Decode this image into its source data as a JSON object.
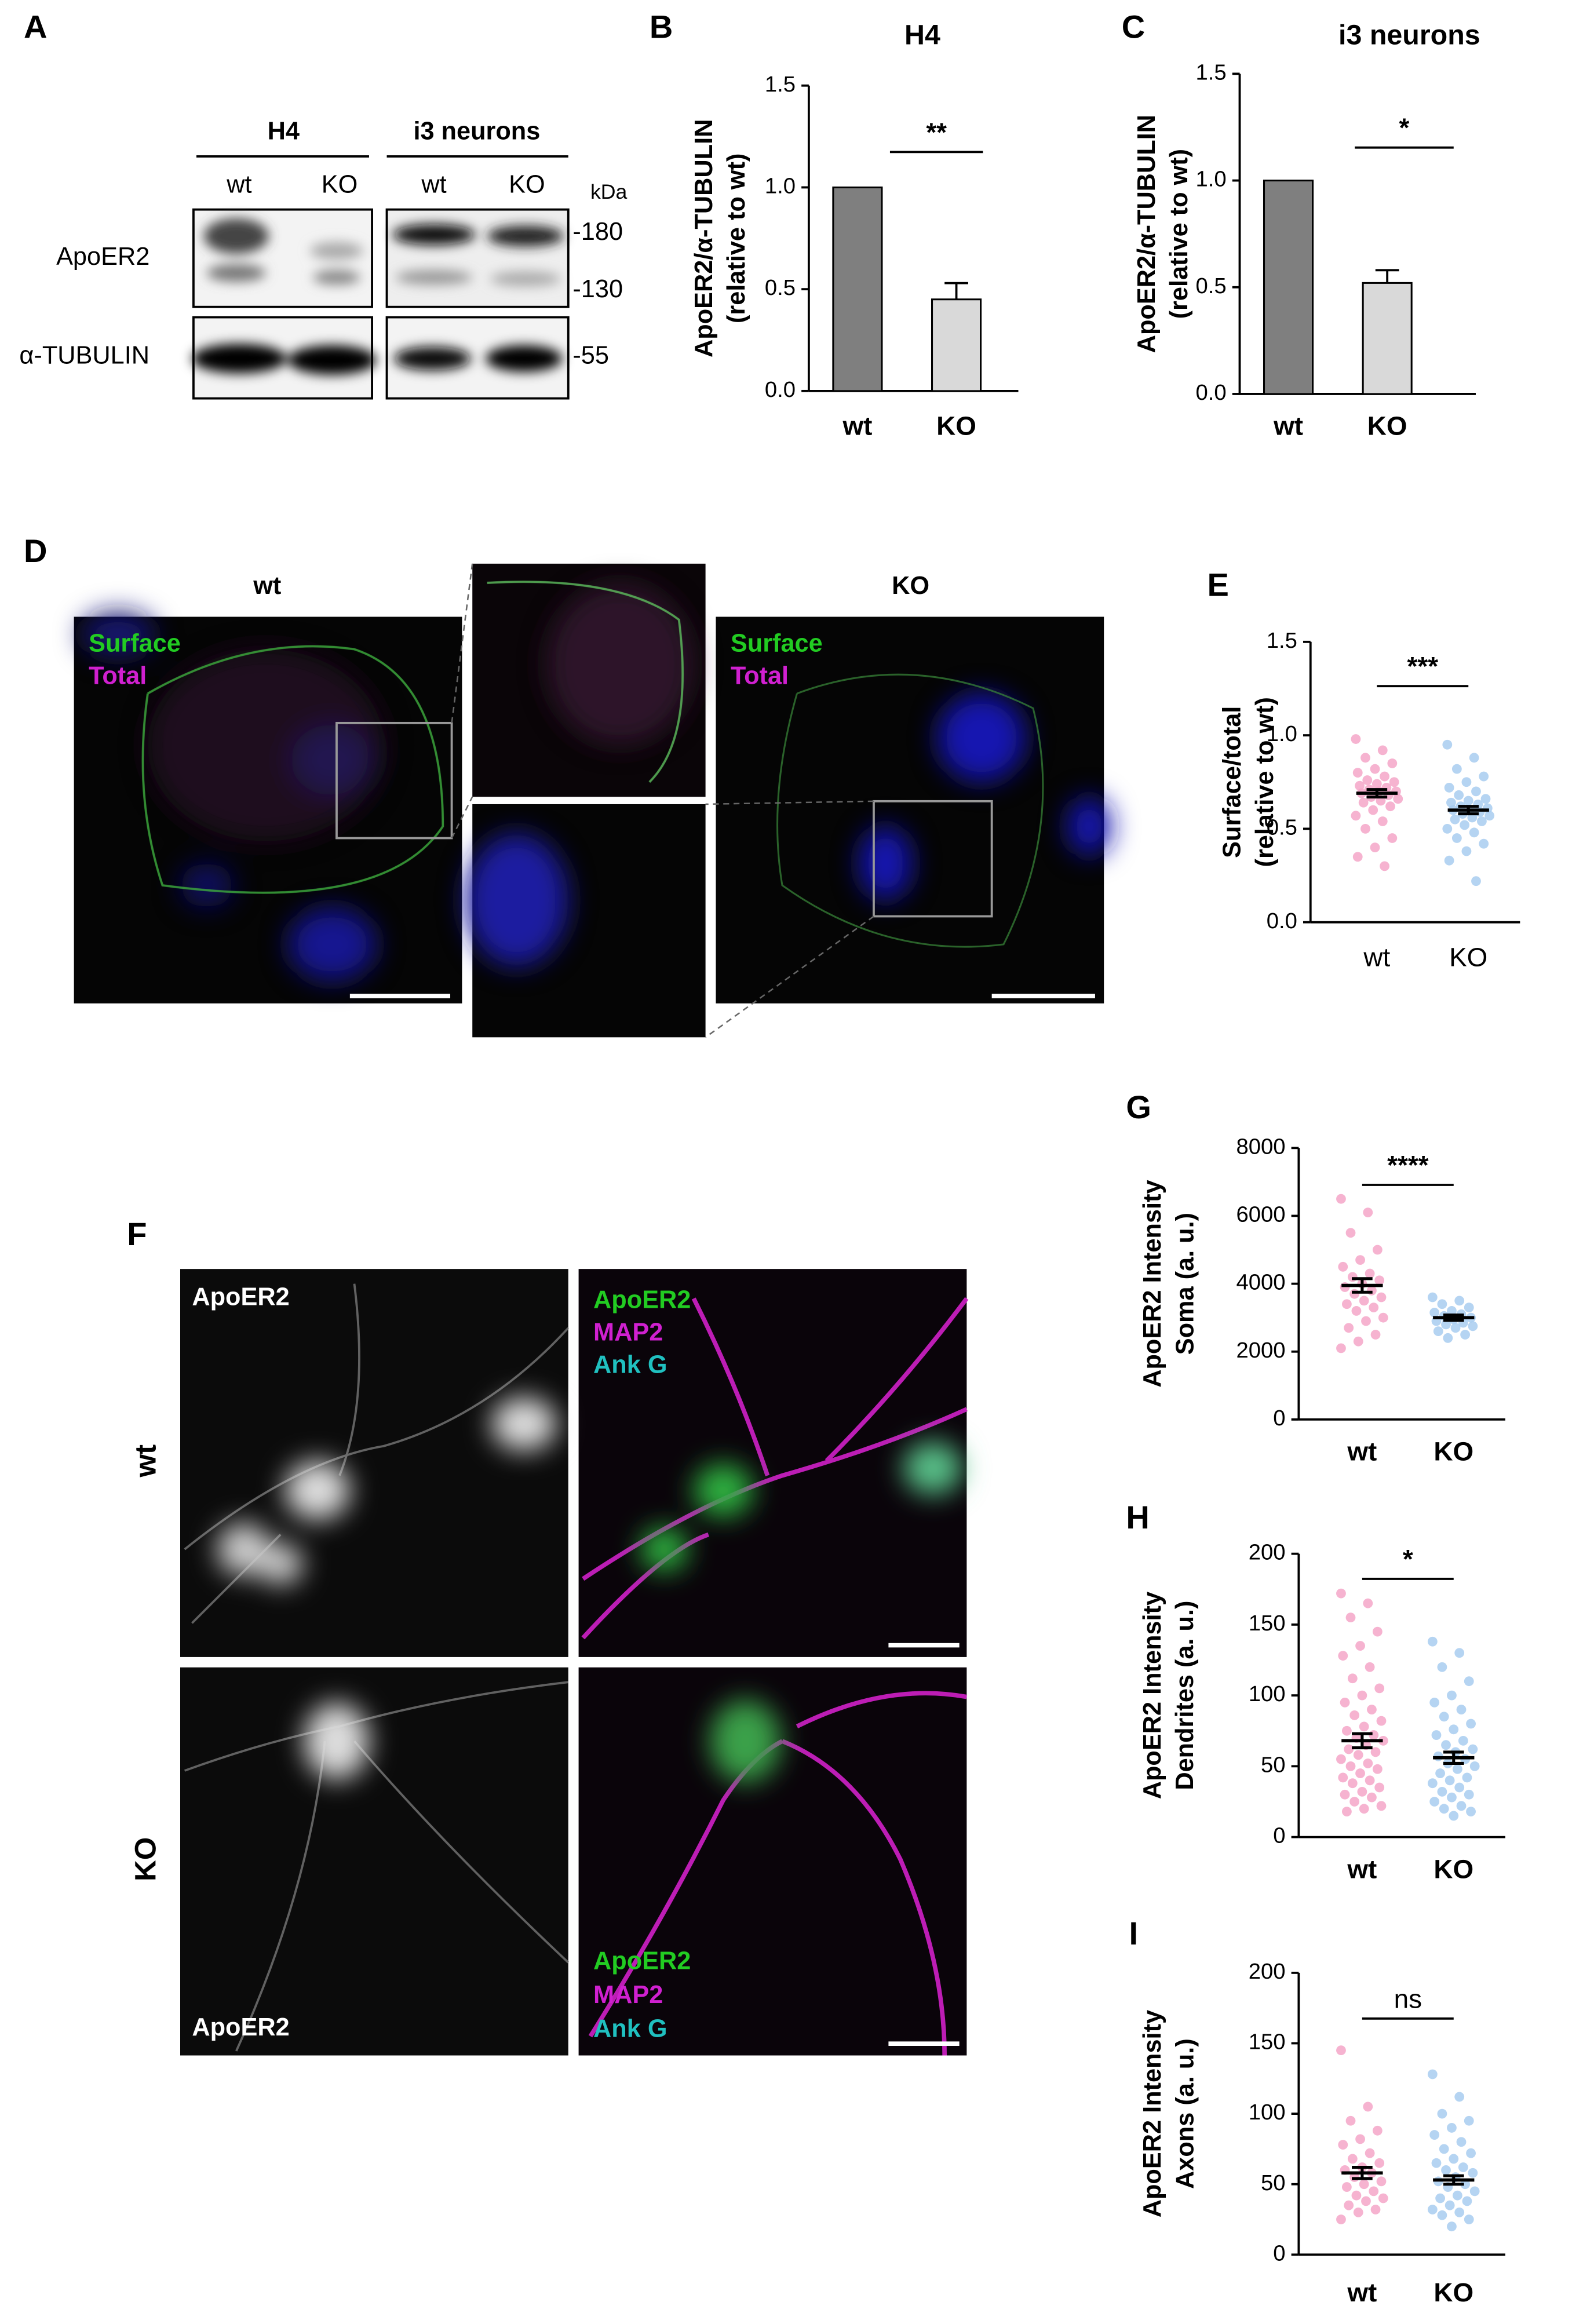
{
  "panel_labels": [
    "A",
    "B",
    "C",
    "D",
    "E",
    "F",
    "G",
    "H",
    "I"
  ],
  "blot": {
    "groups": [
      "H4",
      "i3 neurons"
    ],
    "lanes": [
      "wt",
      "KO",
      "wt",
      "KO"
    ],
    "unit": "kDa",
    "rows": [
      "ApoER2",
      "α-TUBULIN"
    ],
    "markers": [
      "-180",
      "-130",
      "-55"
    ]
  },
  "microscopy_d": {
    "titles": [
      "wt",
      "KO"
    ],
    "channels": [
      "Surface",
      "Total"
    ]
  },
  "microscopy_f": {
    "rows": [
      "wt",
      "KO"
    ],
    "gray_label": "ApoER2",
    "channels": [
      "ApoER2",
      "MAP2",
      "Ank G"
    ]
  },
  "chart_data": [
    {
      "type": "bar",
      "title": "H4",
      "ylabel": [
        "ApoER2/α-TUBULIN",
        "(relative to wt)"
      ],
      "categories": [
        "wt",
        "KO"
      ],
      "values": [
        1.0,
        0.45
      ],
      "errors": [
        null,
        0.08
      ],
      "colors": [
        "#7f7f7f",
        "#d9d9d9"
      ],
      "ylim": [
        0,
        1.5
      ],
      "yticks": [
        {
          "value": 0,
          "label": "0.0"
        },
        {
          "value": 0.5,
          "label": "0.5"
        },
        {
          "value": 1,
          "label": "1.0"
        },
        {
          "value": 1.5,
          "label": "1.5"
        }
      ],
      "significance": "**"
    },
    {
      "type": "bar",
      "title": "i3 neurons",
      "ylabel": [
        "ApoER2/α-TUBULIN",
        "(relative to wt)"
      ],
      "categories": [
        "wt",
        "KO"
      ],
      "values": [
        1.0,
        0.52
      ],
      "errors": [
        null,
        0.06
      ],
      "colors": [
        "#7f7f7f",
        "#d9d9d9"
      ],
      "ylim": [
        0,
        1.5
      ],
      "yticks": [
        {
          "value": 0,
          "label": "0.0"
        },
        {
          "value": 0.5,
          "label": "0.5"
        },
        {
          "value": 1,
          "label": "1.0"
        },
        {
          "value": 1.5,
          "label": "1.5"
        }
      ],
      "significance": "*"
    },
    {
      "type": "strip",
      "ylabel": [
        "Surface/total",
        "(relative to wt)"
      ],
      "categories": [
        "wt",
        "KO"
      ],
      "points": [
        [
          0.98,
          0.92,
          0.88,
          0.85,
          0.82,
          0.8,
          0.78,
          0.76,
          0.75,
          0.74,
          0.73,
          0.72,
          0.71,
          0.7,
          0.7,
          0.69,
          0.68,
          0.67,
          0.66,
          0.65,
          0.64,
          0.62,
          0.6,
          0.57,
          0.54,
          0.5,
          0.45,
          0.4,
          0.35,
          0.3
        ],
        [
          0.95,
          0.88,
          0.82,
          0.78,
          0.75,
          0.72,
          0.7,
          0.68,
          0.66,
          0.65,
          0.64,
          0.63,
          0.62,
          0.61,
          0.6,
          0.6,
          0.59,
          0.58,
          0.57,
          0.56,
          0.55,
          0.54,
          0.52,
          0.5,
          0.48,
          0.45,
          0.42,
          0.38,
          0.33,
          0.22
        ]
      ],
      "means": [
        0.69,
        0.6
      ],
      "sems": [
        0.02,
        0.02
      ],
      "colors": [
        "#f4a6c8",
        "#a8cdf0"
      ],
      "ylim": [
        0,
        1.5
      ],
      "yticks": [
        {
          "value": 0,
          "label": "0.0"
        },
        {
          "value": 0.5,
          "label": "0.5"
        },
        {
          "value": 1,
          "label": "1.0"
        },
        {
          "value": 1.5,
          "label": "1.5"
        }
      ],
      "significance": "***"
    },
    {
      "type": "strip",
      "ylabel": [
        "ApoER2 Intensity",
        "Soma (a. u.)"
      ],
      "categories": [
        "wt",
        "KO"
      ],
      "points": [
        [
          6500,
          6100,
          5500,
          5000,
          4700,
          4500,
          4300,
          4200,
          4100,
          4000,
          3900,
          3800,
          3700,
          3600,
          3500,
          3400,
          3300,
          3200,
          3000,
          2900,
          2700,
          2500,
          2300,
          2100
        ],
        [
          3600,
          3500,
          3400,
          3300,
          3200,
          3150,
          3100,
          3050,
          3000,
          2950,
          2900,
          2850,
          2800,
          2750,
          2700,
          2600,
          2500,
          2400
        ]
      ],
      "means": [
        3950,
        3000
      ],
      "sems": [
        200,
        80
      ],
      "colors": [
        "#f4a6c8",
        "#a8cdf0"
      ],
      "ylim": [
        0,
        8000
      ],
      "yticks": [
        0,
        2000,
        4000,
        6000,
        8000
      ],
      "significance": "****"
    },
    {
      "type": "strip",
      "ylabel": [
        "ApoER2 Intensity",
        "Dendrites (a. u.)"
      ],
      "categories": [
        "wt",
        "KO"
      ],
      "points": [
        [
          172,
          165,
          155,
          145,
          135,
          128,
          120,
          112,
          105,
          100,
          95,
          90,
          86,
          82,
          78,
          75,
          72,
          70,
          68,
          65,
          62,
          60,
          58,
          55,
          52,
          50,
          48,
          45,
          42,
          40,
          38,
          35,
          32,
          30,
          28,
          25,
          22,
          20,
          18
        ],
        [
          138,
          130,
          120,
          110,
          100,
          95,
          90,
          85,
          80,
          76,
          72,
          68,
          65,
          62,
          60,
          57,
          55,
          52,
          50,
          48,
          45,
          42,
          40,
          38,
          35,
          32,
          30,
          28,
          25,
          22,
          20,
          18,
          15
        ]
      ],
      "means": [
        68,
        56
      ],
      "sems": [
        5,
        4
      ],
      "colors": [
        "#f4a6c8",
        "#a8cdf0"
      ],
      "ylim": [
        0,
        200
      ],
      "yticks": [
        0,
        50,
        100,
        150,
        200
      ],
      "significance": "*"
    },
    {
      "type": "strip",
      "ylabel": [
        "ApoER2 Intensity",
        "Axons (a. u.)"
      ],
      "categories": [
        "wt",
        "KO"
      ],
      "points": [
        [
          145,
          105,
          95,
          88,
          82,
          78,
          72,
          68,
          65,
          62,
          60,
          58,
          55,
          52,
          50,
          48,
          45,
          42,
          40,
          38,
          35,
          32,
          30,
          25
        ],
        [
          128,
          112,
          100,
          95,
          90,
          85,
          80,
          75,
          72,
          68,
          65,
          62,
          60,
          58,
          55,
          52,
          50,
          48,
          45,
          42,
          40,
          38,
          35,
          32,
          30,
          28,
          25,
          20
        ]
      ],
      "means": [
        58,
        53
      ],
      "sems": [
        4,
        3
      ],
      "colors": [
        "#f4a6c8",
        "#a8cdf0"
      ],
      "ylim": [
        0,
        200
      ],
      "yticks": [
        0,
        50,
        100,
        150,
        200
      ],
      "significance": "ns"
    }
  ]
}
